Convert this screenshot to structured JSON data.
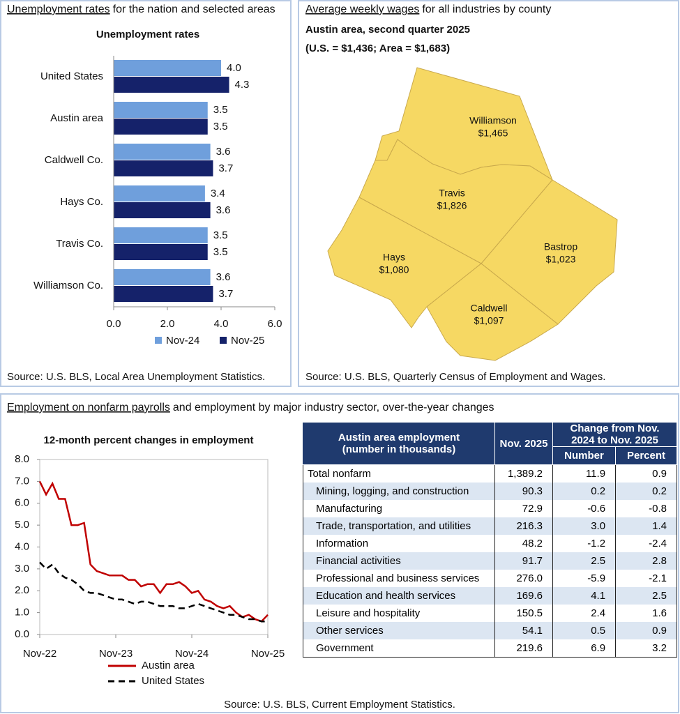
{
  "unemployment_panel": {
    "heading_link": "Unemployment rates",
    "heading_rest": "for the nation and selected areas",
    "source": "Source: U.S. BLS, Local Area Unemployment Statistics."
  },
  "wages_panel": {
    "heading_link": "Average weekly wages",
    "heading_rest": "for all industries by county",
    "subtitle": "Austin area, second quarter 2025",
    "subtitle2": "(U.S. = $1,436; Area = $1,683)",
    "counties": [
      {
        "name": "Williamson",
        "wage": "$1,465"
      },
      {
        "name": "Travis",
        "wage": "$1,826"
      },
      {
        "name": "Hays",
        "wage": "$1,080"
      },
      {
        "name": "Bastrop",
        "wage": "$1,023"
      },
      {
        "name": "Caldwell",
        "wage": "$1,097"
      }
    ],
    "source": "Source: U.S. BLS, Quarterly Census of Employment and Wages."
  },
  "employment_panel": {
    "heading_link": "Employment on nonfarm payrolls",
    "heading_rest": "and employment by major industry sector, over-the-year changes",
    "source": "Source: U.S. BLS, Current Employment Statistics."
  },
  "chart_data": [
    {
      "type": "bar",
      "orientation": "horizontal",
      "title": "Unemployment rates",
      "categories": [
        "United States",
        "Austin area",
        "Caldwell Co.",
        "Hays Co.",
        "Travis Co.",
        "Williamson Co."
      ],
      "series": [
        {
          "name": "Nov-24",
          "color": "#6f9fdc",
          "values": [
            4.0,
            3.5,
            3.6,
            3.4,
            3.5,
            3.6
          ],
          "value_labels": [
            "4.0",
            "3.5",
            "3.6",
            "3.4",
            "3.5",
            "3.6"
          ]
        },
        {
          "name": "Nov-25",
          "color": "#15226a",
          "values": [
            4.3,
            3.5,
            3.7,
            3.6,
            3.5,
            3.7
          ],
          "value_labels": [
            "4.3",
            "3.5",
            "3.7",
            "3.6",
            "3.5",
            "3.7"
          ]
        }
      ],
      "xlim": [
        0,
        6
      ],
      "xticks": [
        {
          "value": 0,
          "label": "0.0"
        },
        {
          "value": 2,
          "label": "2.0"
        },
        {
          "value": 4,
          "label": "4.0"
        },
        {
          "value": 6,
          "label": "6.0"
        }
      ],
      "grid": false,
      "legend": "bottom"
    },
    {
      "type": "line",
      "title": "12-month percent changes in employment",
      "categories": [
        "Nov-22",
        null,
        null,
        null,
        null,
        null,
        null,
        null,
        null,
        null,
        null,
        null,
        "Nov-23",
        null,
        null,
        null,
        null,
        null,
        null,
        null,
        null,
        null,
        null,
        null,
        "Nov-24",
        null,
        null,
        null,
        null,
        null,
        null,
        null,
        null,
        null,
        null,
        null,
        "Nov-25"
      ],
      "series": [
        {
          "name": "Austin area",
          "color": "#c00000",
          "dashed": false,
          "values": [
            7.0,
            6.4,
            6.9,
            6.2,
            6.2,
            5.0,
            5.0,
            5.1,
            3.2,
            2.9,
            2.8,
            2.7,
            2.7,
            2.7,
            2.5,
            2.5,
            2.2,
            2.3,
            2.3,
            1.9,
            2.3,
            2.3,
            2.4,
            2.2,
            1.9,
            2.0,
            1.6,
            1.5,
            1.3,
            1.2,
            1.3,
            1.0,
            0.8,
            0.9,
            0.7,
            0.6,
            0.9
          ]
        },
        {
          "name": "United States",
          "color": "#000000",
          "dashed": true,
          "values": [
            3.3,
            3.0,
            3.2,
            2.8,
            2.6,
            2.5,
            2.3,
            2.0,
            1.9,
            1.9,
            1.8,
            1.7,
            1.6,
            1.6,
            1.5,
            1.4,
            1.5,
            1.5,
            1.4,
            1.3,
            1.3,
            1.3,
            1.2,
            1.2,
            1.3,
            1.4,
            1.3,
            1.2,
            1.1,
            1.0,
            0.9,
            0.9,
            0.8,
            0.7,
            0.7,
            0.6,
            0.6
          ]
        }
      ],
      "ylim": [
        0,
        8
      ],
      "yticks": [
        {
          "value": 0,
          "label": "0.0"
        },
        {
          "value": 1,
          "label": "1.0"
        },
        {
          "value": 2,
          "label": "2.0"
        },
        {
          "value": 3,
          "label": "3.0"
        },
        {
          "value": 4,
          "label": "4.0"
        },
        {
          "value": 5,
          "label": "5.0"
        },
        {
          "value": 6,
          "label": "6.0"
        },
        {
          "value": 7,
          "label": "7.0"
        },
        {
          "value": 8,
          "label": "8.0"
        }
      ],
      "grid": false,
      "legend": "bottom"
    }
  ],
  "table": {
    "header_lines": [
      "Austin area employment",
      "(number in thousands)"
    ],
    "current_col": "Nov. 2025",
    "group_lines": [
      "Change from Nov.",
      "2024 to Nov. 2025"
    ],
    "sub_cols": [
      "Number",
      "Percent"
    ],
    "rows": [
      [
        "Total nonfarm",
        "1,389.2",
        "11.9",
        "0.9"
      ],
      [
        "Mining, logging, and construction",
        "90.3",
        "0.2",
        "0.2"
      ],
      [
        "Manufacturing",
        "72.9",
        "-0.6",
        "-0.8"
      ],
      [
        "Trade, transportation, and utilities",
        "216.3",
        "3.0",
        "1.4"
      ],
      [
        "Information",
        "48.2",
        "-1.2",
        "-2.4"
      ],
      [
        "Financial activities",
        "91.7",
        "2.5",
        "2.8"
      ],
      [
        "Professional and business services",
        "276.0",
        "-5.9",
        "-2.1"
      ],
      [
        "Education and health services",
        "169.6",
        "4.1",
        "2.5"
      ],
      [
        "Leisure and hospitality",
        "150.5",
        "2.4",
        "1.6"
      ],
      [
        "Other services",
        "54.1",
        "0.5",
        "0.9"
      ],
      [
        "Government",
        "219.6",
        "6.9",
        "3.2"
      ]
    ]
  }
}
